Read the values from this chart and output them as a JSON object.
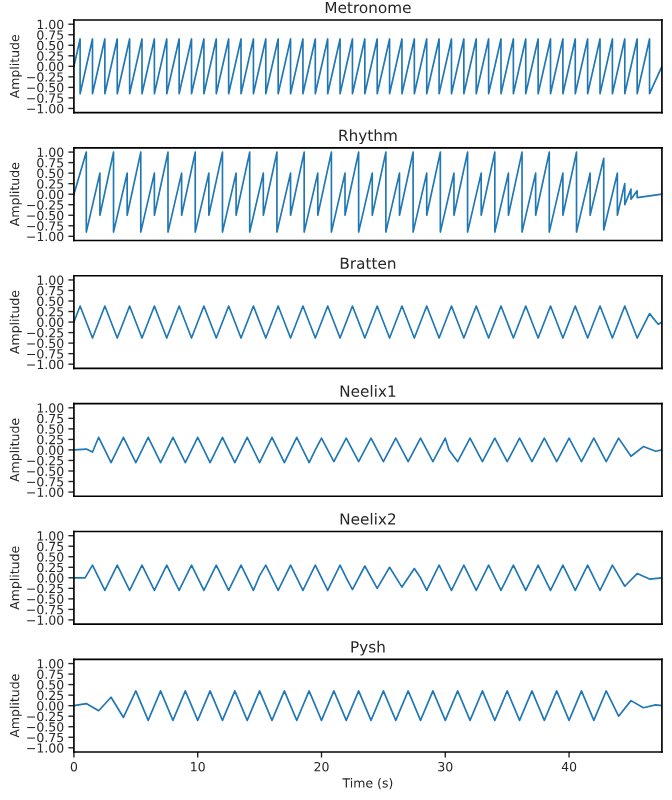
{
  "chart_data": [
    {
      "type": "line",
      "title": "Metronome",
      "ylabel": "Amplitude",
      "tick_labels": "y",
      "grid": false,
      "xlim": [
        0,
        47.5
      ],
      "xticks": [
        0,
        10,
        20,
        30,
        40
      ],
      "ylim": [
        -1.1,
        1.1
      ],
      "yticks": [
        {
          "value": -1,
          "label": "−1.00"
        },
        {
          "value": -0.75,
          "label": "−0.75"
        },
        {
          "value": -0.5,
          "label": "−0.50"
        },
        {
          "value": -0.25,
          "label": "−0.25"
        },
        {
          "value": 0,
          "label": "0.00"
        },
        {
          "value": 0.25,
          "label": "0.25"
        },
        {
          "value": 0.5,
          "label": "0.50"
        },
        {
          "value": 0.75,
          "label": "0.75"
        },
        {
          "value": 1,
          "label": "1.00"
        }
      ],
      "series": [
        {
          "color": "#1f77b4",
          "x": [
            0,
            0.5,
            0.5,
            1.5,
            1.5,
            2.5,
            2.5,
            3.5,
            3.5,
            4.5,
            4.5,
            5.5,
            5.5,
            6.5,
            6.5,
            7.5,
            7.5,
            8.5,
            8.5,
            9.5,
            9.5,
            10.5,
            10.5,
            11.5,
            11.5,
            12.5,
            12.5,
            13.5,
            13.5,
            14.5,
            14.5,
            15.5,
            15.5,
            16.5,
            16.5,
            17.5,
            17.5,
            18.5,
            18.5,
            19.5,
            19.5,
            20.5,
            20.5,
            21.5,
            21.5,
            22.5,
            22.5,
            23.5,
            23.5,
            24.5,
            24.5,
            25.5,
            25.5,
            26.5,
            26.5,
            27.5,
            27.5,
            28.5,
            28.5,
            29.5,
            29.5,
            30.5,
            30.5,
            31.5,
            31.5,
            32.5,
            32.5,
            33.5,
            33.5,
            34.5,
            34.5,
            35.5,
            35.5,
            36.5,
            36.5,
            37.5,
            37.5,
            38.5,
            38.5,
            39.5,
            39.5,
            40.5,
            40.5,
            41.5,
            41.5,
            42.5,
            42.5,
            43.5,
            43.5,
            44.5,
            44.5,
            45.5,
            45.5,
            46.5,
            46.5,
            47.5
          ],
          "values": [
            0,
            0.65,
            -0.65,
            0.65,
            -0.65,
            0.65,
            -0.65,
            0.65,
            -0.65,
            0.65,
            -0.65,
            0.65,
            -0.65,
            0.65,
            -0.65,
            0.65,
            -0.65,
            0.65,
            -0.65,
            0.65,
            -0.65,
            0.65,
            -0.65,
            0.65,
            -0.65,
            0.65,
            -0.65,
            0.65,
            -0.65,
            0.65,
            -0.65,
            0.65,
            -0.65,
            0.65,
            -0.65,
            0.65,
            -0.65,
            0.65,
            -0.65,
            0.65,
            -0.65,
            0.65,
            -0.65,
            0.65,
            -0.65,
            0.65,
            -0.65,
            0.65,
            -0.65,
            0.65,
            -0.65,
            0.65,
            -0.65,
            0.65,
            -0.65,
            0.65,
            -0.65,
            0.65,
            -0.65,
            0.65,
            -0.65,
            0.65,
            -0.65,
            0.65,
            -0.65,
            0.65,
            -0.65,
            0.65,
            -0.65,
            0.65,
            -0.65,
            0.65,
            -0.65,
            0.65,
            -0.65,
            0.65,
            -0.65,
            0.65,
            -0.65,
            0.65,
            -0.65,
            0.65,
            -0.65,
            0.65,
            -0.65,
            0.65,
            -0.65,
            0.65,
            -0.65,
            0.65,
            -0.65,
            0.65,
            -0.65,
            0.65,
            -0.65,
            0
          ]
        }
      ]
    },
    {
      "type": "line",
      "title": "Rhythm",
      "ylabel": "Amplitude",
      "tick_labels": "y",
      "grid": false,
      "xlim": [
        0,
        47.5
      ],
      "xticks": [
        0,
        10,
        20,
        30,
        40
      ],
      "ylim": [
        -1.1,
        1.1
      ],
      "yticks": [
        {
          "value": -1,
          "label": "−1.00"
        },
        {
          "value": -0.75,
          "label": "−0.75"
        },
        {
          "value": -0.5,
          "label": "−0.50"
        },
        {
          "value": -0.25,
          "label": "−0.25"
        },
        {
          "value": 0,
          "label": "0.00"
        },
        {
          "value": 0.25,
          "label": "0.25"
        },
        {
          "value": 0.5,
          "label": "0.50"
        },
        {
          "value": 0.75,
          "label": "0.75"
        },
        {
          "value": 1,
          "label": "1.00"
        }
      ],
      "series": [
        {
          "color": "#1f77b4",
          "x": [
            0,
            1,
            1,
            2.1,
            2.1,
            3.2,
            3.2,
            4.3,
            4.3,
            5.4,
            5.4,
            6.5,
            6.5,
            7.6,
            7.6,
            8.7,
            8.7,
            9.8,
            9.8,
            10.9,
            10.9,
            12,
            12,
            13.1,
            13.1,
            14.2,
            14.2,
            15.3,
            15.3,
            16.4,
            16.4,
            17.5,
            17.5,
            18.6,
            18.6,
            19.7,
            19.7,
            20.8,
            20.8,
            21.9,
            21.9,
            23,
            23,
            24.1,
            24.1,
            25.2,
            25.2,
            26.3,
            26.3,
            27.4,
            27.4,
            28.5,
            28.5,
            29.6,
            29.6,
            30.7,
            30.7,
            31.8,
            31.8,
            32.9,
            32.9,
            34,
            34,
            35.1,
            35.1,
            36.2,
            36.2,
            37.3,
            37.3,
            38.4,
            38.4,
            39.5,
            39.5,
            40.6,
            40.6,
            41.7,
            41.7,
            42.8,
            42.8,
            43.9,
            43.9,
            44.5,
            44.5,
            45,
            45,
            45.5,
            45.5,
            47.5
          ],
          "values": [
            0,
            1,
            -0.9,
            0.5,
            -0.5,
            1,
            -0.9,
            0.5,
            -0.5,
            1,
            -0.9,
            0.5,
            -0.5,
            1,
            -0.9,
            0.5,
            -0.5,
            1,
            -0.9,
            0.5,
            -0.5,
            1,
            -0.9,
            0.5,
            -0.5,
            1,
            -0.9,
            0.5,
            -0.5,
            1,
            -0.9,
            0.5,
            -0.5,
            1,
            -0.9,
            0.5,
            -0.5,
            1,
            -0.9,
            0.5,
            -0.5,
            1,
            -0.9,
            0.5,
            -0.5,
            1,
            -0.9,
            0.5,
            -0.5,
            1,
            -0.9,
            0.5,
            -0.5,
            1,
            -0.9,
            0.5,
            -0.5,
            1,
            -0.9,
            0.5,
            -0.5,
            1,
            -0.9,
            0.5,
            -0.5,
            1,
            -0.9,
            0.5,
            -0.5,
            1,
            -0.9,
            0.5,
            -0.5,
            1,
            -0.9,
            0.5,
            -0.5,
            0.85,
            -0.85,
            0.5,
            -0.5,
            0.25,
            -0.25,
            0.12,
            -0.12,
            0.08,
            -0.08,
            0
          ]
        }
      ]
    },
    {
      "type": "line",
      "title": "Bratten",
      "ylabel": "Amplitude",
      "tick_labels": "y",
      "grid": false,
      "xlim": [
        0,
        47.5
      ],
      "xticks": [
        0,
        10,
        20,
        30,
        40
      ],
      "ylim": [
        -1.1,
        1.1
      ],
      "yticks": [
        {
          "value": -1,
          "label": "−1.00"
        },
        {
          "value": -0.75,
          "label": "−0.75"
        },
        {
          "value": -0.5,
          "label": "−0.50"
        },
        {
          "value": -0.25,
          "label": "−0.25"
        },
        {
          "value": 0,
          "label": "0.00"
        },
        {
          "value": 0.25,
          "label": "0.25"
        },
        {
          "value": 0.5,
          "label": "0.50"
        },
        {
          "value": 0.75,
          "label": "0.75"
        },
        {
          "value": 1,
          "label": "1.00"
        }
      ],
      "series": [
        {
          "color": "#1f77b4",
          "x": [
            0,
            0.5,
            1.5,
            2.5,
            3.5,
            4.5,
            5.5,
            6.5,
            7.5,
            8.5,
            9.5,
            10.5,
            11.5,
            12.5,
            13.5,
            14.5,
            15.5,
            16.5,
            17.5,
            18.5,
            19.5,
            20.5,
            21.5,
            22.5,
            23.5,
            24.5,
            25.5,
            26.5,
            27.5,
            28.5,
            29.5,
            30.5,
            31.5,
            32.5,
            33.5,
            34.5,
            35.5,
            36.5,
            37.5,
            38.5,
            39.5,
            40.5,
            41.5,
            42.5,
            43.5,
            44.5,
            45.5,
            46.5,
            47.2,
            47.5
          ],
          "values": [
            0,
            0.38,
            -0.38,
            0.38,
            -0.38,
            0.38,
            -0.38,
            0.38,
            -0.38,
            0.38,
            -0.38,
            0.38,
            -0.38,
            0.38,
            -0.38,
            0.38,
            -0.38,
            0.38,
            -0.38,
            0.38,
            -0.38,
            0.38,
            -0.38,
            0.38,
            -0.38,
            0.38,
            -0.38,
            0.38,
            -0.38,
            0.38,
            -0.38,
            0.38,
            -0.38,
            0.38,
            -0.38,
            0.38,
            -0.38,
            0.38,
            -0.38,
            0.38,
            -0.38,
            0.38,
            -0.38,
            0.38,
            -0.38,
            0.38,
            -0.38,
            0.2,
            -0.05,
            0
          ]
        }
      ]
    },
    {
      "type": "line",
      "title": "Neelix1",
      "ylabel": "Amplitude",
      "tick_labels": "y",
      "grid": false,
      "xlim": [
        0,
        47.5
      ],
      "xticks": [
        0,
        10,
        20,
        30,
        40
      ],
      "ylim": [
        -1.1,
        1.1
      ],
      "yticks": [
        {
          "value": -1,
          "label": "−1.00"
        },
        {
          "value": -0.75,
          "label": "−0.75"
        },
        {
          "value": -0.5,
          "label": "−0.50"
        },
        {
          "value": -0.25,
          "label": "−0.25"
        },
        {
          "value": 0,
          "label": "0.00"
        },
        {
          "value": 0.25,
          "label": "0.25"
        },
        {
          "value": 0.5,
          "label": "0.50"
        },
        {
          "value": 0.75,
          "label": "0.75"
        },
        {
          "value": 1,
          "label": "1.00"
        }
      ],
      "series": [
        {
          "color": "#1f77b4",
          "x": [
            0,
            1,
            1.5,
            2,
            3,
            4,
            5,
            6,
            6.5,
            7,
            8,
            9,
            10,
            10.5,
            11,
            12,
            13,
            13.5,
            14,
            15,
            16,
            16.5,
            17,
            18,
            19,
            19.5,
            20,
            21,
            22,
            23,
            24,
            25,
            26,
            27,
            28,
            29,
            30,
            30.3,
            31,
            32,
            33,
            34,
            35,
            36,
            37,
            38,
            39,
            40,
            41,
            42,
            43,
            44,
            45,
            46,
            47,
            47.5
          ],
          "values": [
            0,
            0.02,
            -0.05,
            0.3,
            -0.3,
            0.3,
            -0.3,
            0.3,
            0,
            -0.3,
            0.3,
            -0.3,
            0.3,
            0,
            -0.3,
            0.3,
            -0.3,
            0,
            0.3,
            -0.3,
            0.3,
            0,
            -0.3,
            0.3,
            -0.3,
            0,
            0.28,
            -0.28,
            0.28,
            -0.28,
            0.28,
            -0.28,
            0.28,
            -0.28,
            0.28,
            -0.28,
            0.28,
            0,
            -0.28,
            0.28,
            -0.28,
            0.28,
            -0.28,
            0.28,
            -0.28,
            0.28,
            -0.28,
            0.28,
            -0.28,
            0.28,
            -0.28,
            0.28,
            -0.15,
            0.08,
            -0.03,
            0
          ]
        }
      ]
    },
    {
      "type": "line",
      "title": "Neelix2",
      "ylabel": "Amplitude",
      "tick_labels": "y",
      "grid": false,
      "xlim": [
        0,
        47.5
      ],
      "xticks": [
        0,
        10,
        20,
        30,
        40
      ],
      "ylim": [
        -1.1,
        1.1
      ],
      "yticks": [
        {
          "value": -1,
          "label": "−1.00"
        },
        {
          "value": -0.75,
          "label": "−0.75"
        },
        {
          "value": -0.5,
          "label": "−0.50"
        },
        {
          "value": -0.25,
          "label": "−0.25"
        },
        {
          "value": 0,
          "label": "0.00"
        },
        {
          "value": 0.25,
          "label": "0.25"
        },
        {
          "value": 0.5,
          "label": "0.50"
        },
        {
          "value": 0.75,
          "label": "0.75"
        },
        {
          "value": 1,
          "label": "1.00"
        }
      ],
      "series": [
        {
          "color": "#1f77b4",
          "x": [
            0,
            0.9,
            1.5,
            2.5,
            3.5,
            4.5,
            5.5,
            6.5,
            7.5,
            8,
            8.5,
            9.5,
            10.5,
            11.5,
            12.5,
            13.5,
            14.5,
            15,
            15.5,
            16.5,
            17.5,
            18.5,
            19.5,
            20.5,
            21.5,
            22,
            22.5,
            23.5,
            24.5,
            25.5,
            26.5,
            27.5,
            28,
            28.5,
            29.5,
            30.5,
            31.5,
            32.5,
            33.5,
            34.5,
            35.5,
            36.5,
            37.5,
            38.5,
            39.5,
            40.5,
            41.5,
            42.5,
            43.5,
            44.5,
            45.5,
            46.5,
            47.5
          ],
          "values": [
            0,
            0,
            0.3,
            -0.3,
            0.3,
            -0.3,
            0.3,
            -0.3,
            0.3,
            0,
            -0.3,
            0.3,
            -0.3,
            0.3,
            -0.3,
            0.3,
            -0.3,
            0.05,
            0.3,
            -0.3,
            0.3,
            -0.3,
            0.3,
            -0.3,
            0.3,
            0,
            -0.28,
            0.28,
            -0.25,
            0.25,
            -0.22,
            0.22,
            0,
            -0.3,
            0.3,
            -0.3,
            0.3,
            -0.3,
            0.3,
            -0.3,
            0.3,
            -0.3,
            0.3,
            -0.3,
            0.3,
            -0.3,
            0.3,
            -0.3,
            0.3,
            -0.2,
            0.1,
            -0.03,
            0
          ]
        }
      ]
    },
    {
      "type": "line",
      "title": "Pysh",
      "ylabel": "Amplitude",
      "xlabel": "Time (s)",
      "grid": false,
      "xlim": [
        0,
        47.5
      ],
      "xticks": [
        0,
        10,
        20,
        30,
        40
      ],
      "ylim": [
        -1.1,
        1.1
      ],
      "yticks": [
        {
          "value": -1,
          "label": "−1.00"
        },
        {
          "value": -0.75,
          "label": "−0.75"
        },
        {
          "value": -0.5,
          "label": "−0.50"
        },
        {
          "value": -0.25,
          "label": "−0.25"
        },
        {
          "value": 0,
          "label": "0.00"
        },
        {
          "value": 0.25,
          "label": "0.25"
        },
        {
          "value": 0.5,
          "label": "0.50"
        },
        {
          "value": 0.75,
          "label": "0.75"
        },
        {
          "value": 1,
          "label": "1.00"
        }
      ],
      "series": [
        {
          "color": "#1f77b4",
          "x": [
            0,
            1,
            2,
            3,
            4,
            5,
            6,
            7,
            8,
            9,
            10,
            11,
            12,
            13,
            14,
            15,
            16,
            17,
            18,
            19,
            20,
            21,
            22,
            23,
            24,
            25,
            26,
            27,
            28,
            29,
            30,
            31,
            32,
            33,
            34,
            35,
            36,
            37,
            38,
            39,
            40,
            41,
            42,
            43,
            44,
            45,
            46,
            47,
            47.5
          ],
          "values": [
            0,
            0.05,
            -0.12,
            0.2,
            -0.28,
            0.35,
            -0.35,
            0.35,
            -0.35,
            0.35,
            -0.35,
            0.35,
            -0.35,
            0.35,
            -0.35,
            0.35,
            -0.35,
            0.35,
            -0.35,
            0.35,
            -0.35,
            0.35,
            -0.35,
            0.35,
            -0.35,
            0.35,
            -0.35,
            0.35,
            -0.35,
            0.35,
            -0.35,
            0.35,
            -0.35,
            0.35,
            -0.35,
            0.35,
            -0.35,
            0.35,
            -0.35,
            0.35,
            -0.35,
            0.35,
            -0.35,
            0.35,
            -0.25,
            0.12,
            -0.05,
            0.02,
            0
          ]
        }
      ]
    }
  ]
}
